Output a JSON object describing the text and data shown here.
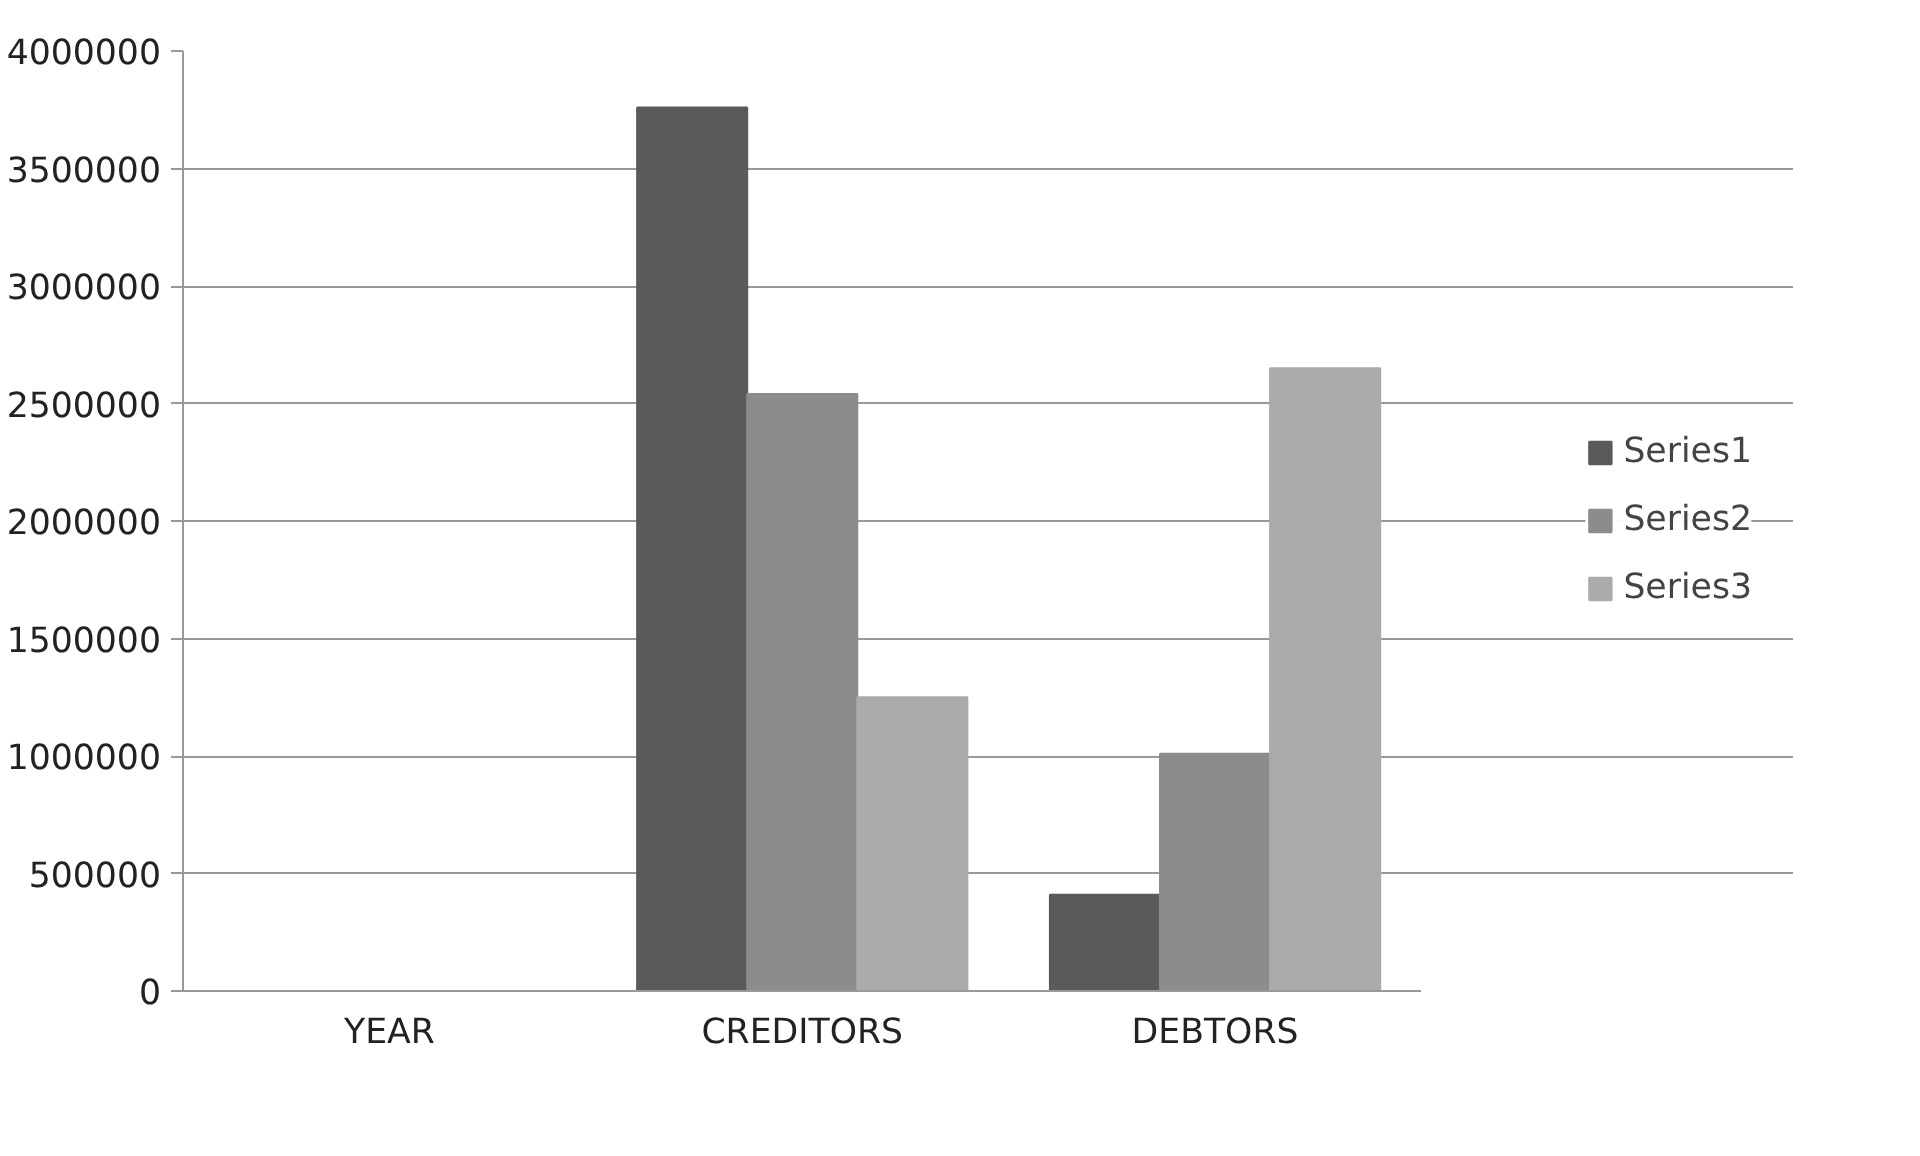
{
  "chart_data": {
    "type": "bar",
    "categories": [
      "YEAR",
      "CREDITORS",
      "DEBTORS"
    ],
    "series": [
      {
        "name": "Series1",
        "color": "#5a5a5a",
        "values": [
          null,
          3760000,
          410000
        ]
      },
      {
        "name": "Series2",
        "color": "#8c8c8c",
        "values": [
          null,
          2540000,
          1010000
        ]
      },
      {
        "name": "Series3",
        "color": "#ababab",
        "values": [
          null,
          1250000,
          2650000
        ]
      }
    ],
    "ylim": [
      0,
      4000000
    ],
    "yticks": [
      0,
      500000,
      1000000,
      1500000,
      2000000,
      2500000,
      3000000,
      3500000,
      4000000
    ],
    "grid": "y",
    "legend": "right"
  }
}
